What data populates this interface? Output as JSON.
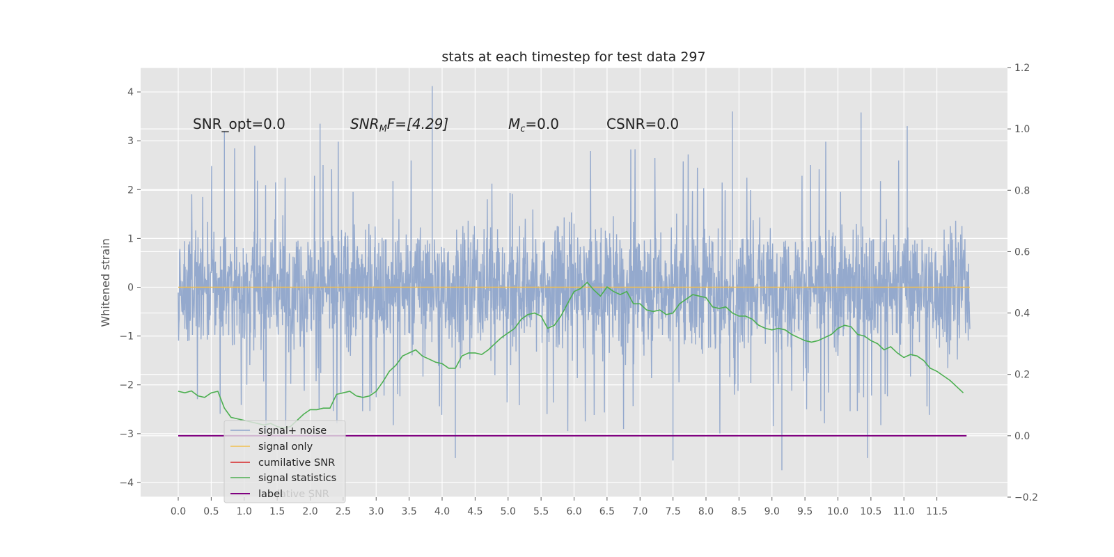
{
  "chart_data": {
    "type": "line",
    "title": "stats at each timestep for test data 297",
    "ylabel": "Whitened strain",
    "xlabel": "",
    "xlim": [
      -0.57,
      12.57
    ],
    "ylim": [
      -4.3,
      4.5
    ],
    "y2lim": [
      -0.2,
      1.2
    ],
    "xticks": [
      "0.0",
      "0.5",
      "1.0",
      "1.5",
      "2.0",
      "2.5",
      "3.0",
      "3.5",
      "4.0",
      "4.5",
      "5.0",
      "5.5",
      "6.0",
      "6.5",
      "7.0",
      "7.5",
      "8.0",
      "8.5",
      "9.0",
      "9.5",
      "10.0",
      "10.5",
      "11.0",
      "11.5"
    ],
    "yticks": [
      "−4",
      "−3",
      "−2",
      "−1",
      "0",
      "1",
      "2",
      "3",
      "4"
    ],
    "y2ticks": [
      "−0.2",
      "0.0",
      "0.2",
      "0.4",
      "0.6",
      "0.8",
      "1.0",
      "1.2"
    ],
    "grid": true,
    "legend_placement": "lower-left",
    "annotations": {
      "snr_opt": "SNR_opt=0.0",
      "snr_mf_main": "SNR",
      "snr_mf_sub": "M",
      "snr_mf_rest": "F=[4.29]",
      "mc_main": "M",
      "mc_sub": "c",
      "mc_rest": "=0.0",
      "csnr": "CSNR=0.0"
    },
    "legend": [
      "signal+ noise",
      "signal only",
      "cumilative SNR",
      "signal statistics",
      "label"
    ],
    "hidden_legend_fragment": "lative SNR",
    "colors": {
      "noise": "#8fa5cb",
      "signal": "#f2c04e",
      "cumulative": "#d62728",
      "statistics": "#4caf50",
      "label": "#800080"
    },
    "series": [
      {
        "name": "signal+ noise",
        "axis": "left",
        "style": "dense noise band",
        "x_range": [
          0.0,
          12.0
        ],
        "typical_range": [
          -1.6,
          1.6
        ],
        "peak_max": 4.1,
        "peak_min": -3.7,
        "notable_peaks": [
          [
            0.7,
            3.2
          ],
          [
            2.15,
            3.35
          ],
          [
            3.85,
            4.12
          ],
          [
            6.0,
            1.3
          ],
          [
            8.4,
            3.6
          ],
          [
            10.35,
            3.58
          ],
          [
            11.05,
            3.3
          ],
          [
            4.2,
            -3.5
          ],
          [
            7.5,
            -3.55
          ],
          [
            9.15,
            -3.75
          ],
          [
            10.45,
            -3.5
          ]
        ]
      },
      {
        "name": "signal only",
        "axis": "left",
        "x": [
          0.0,
          12.0
        ],
        "y": [
          0.0,
          0.0
        ]
      },
      {
        "name": "cumilative SNR",
        "axis": "right",
        "x": [],
        "y": []
      },
      {
        "name": "signal statistics",
        "axis": "right",
        "x": [
          0.0,
          0.1,
          0.2,
          0.3,
          0.4,
          0.5,
          0.6,
          0.7,
          0.8,
          0.9,
          1.0,
          1.1,
          1.2,
          1.3,
          1.4,
          1.5,
          1.6,
          1.7,
          1.8,
          1.9,
          2.0,
          2.1,
          2.2,
          2.3,
          2.4,
          2.5,
          2.6,
          2.7,
          2.8,
          2.9,
          3.0,
          3.1,
          3.2,
          3.3,
          3.4,
          3.5,
          3.6,
          3.7,
          3.8,
          3.9,
          4.0,
          4.1,
          4.2,
          4.3,
          4.4,
          4.5,
          4.6,
          4.7,
          4.8,
          4.9,
          5.0,
          5.1,
          5.2,
          5.3,
          5.4,
          5.5,
          5.6,
          5.7,
          5.8,
          5.9,
          6.0,
          6.1,
          6.2,
          6.3,
          6.4,
          6.5,
          6.6,
          6.7,
          6.8,
          6.9,
          7.0,
          7.1,
          7.2,
          7.3,
          7.4,
          7.5,
          7.6,
          7.7,
          7.8,
          7.9,
          8.0,
          8.1,
          8.2,
          8.3,
          8.4,
          8.5,
          8.6,
          8.7,
          8.8,
          8.9,
          9.0,
          9.1,
          9.2,
          9.3,
          9.4,
          9.5,
          9.6,
          9.7,
          9.8,
          9.9,
          10.0,
          10.1,
          10.2,
          10.3,
          10.4,
          10.5,
          10.6,
          10.7,
          10.8,
          10.9,
          11.0,
          11.1,
          11.2,
          11.3,
          11.4,
          11.5,
          11.6,
          11.7,
          11.8,
          11.9
        ],
        "y": [
          0.145,
          0.14,
          0.146,
          0.13,
          0.125,
          0.14,
          0.145,
          0.09,
          0.06,
          0.055,
          0.05,
          0.045,
          0.04,
          0.035,
          0.04,
          0.03,
          0.025,
          0.03,
          0.05,
          0.07,
          0.085,
          0.085,
          0.09,
          0.09,
          0.135,
          0.14,
          0.145,
          0.13,
          0.125,
          0.13,
          0.145,
          0.175,
          0.21,
          0.23,
          0.26,
          0.27,
          0.28,
          0.26,
          0.25,
          0.24,
          0.235,
          0.22,
          0.22,
          0.26,
          0.27,
          0.27,
          0.265,
          0.28,
          0.3,
          0.32,
          0.335,
          0.35,
          0.38,
          0.395,
          0.4,
          0.39,
          0.35,
          0.36,
          0.39,
          0.43,
          0.47,
          0.48,
          0.5,
          0.475,
          0.455,
          0.485,
          0.47,
          0.46,
          0.47,
          0.43,
          0.43,
          0.41,
          0.405,
          0.41,
          0.395,
          0.4,
          0.43,
          0.445,
          0.46,
          0.455,
          0.45,
          0.42,
          0.415,
          0.42,
          0.4,
          0.39,
          0.39,
          0.38,
          0.36,
          0.35,
          0.345,
          0.35,
          0.345,
          0.33,
          0.32,
          0.31,
          0.305,
          0.31,
          0.32,
          0.33,
          0.35,
          0.36,
          0.355,
          0.33,
          0.325,
          0.31,
          0.3,
          0.28,
          0.29,
          0.27,
          0.255,
          0.265,
          0.26,
          0.245,
          0.22,
          0.21,
          0.195,
          0.18,
          0.16,
          0.14
        ],
        "line_x_end": 11.9
      },
      {
        "name": "label",
        "axis": "right",
        "x": [
          0.0,
          11.95
        ],
        "y": [
          0.0,
          0.0
        ]
      }
    ]
  }
}
